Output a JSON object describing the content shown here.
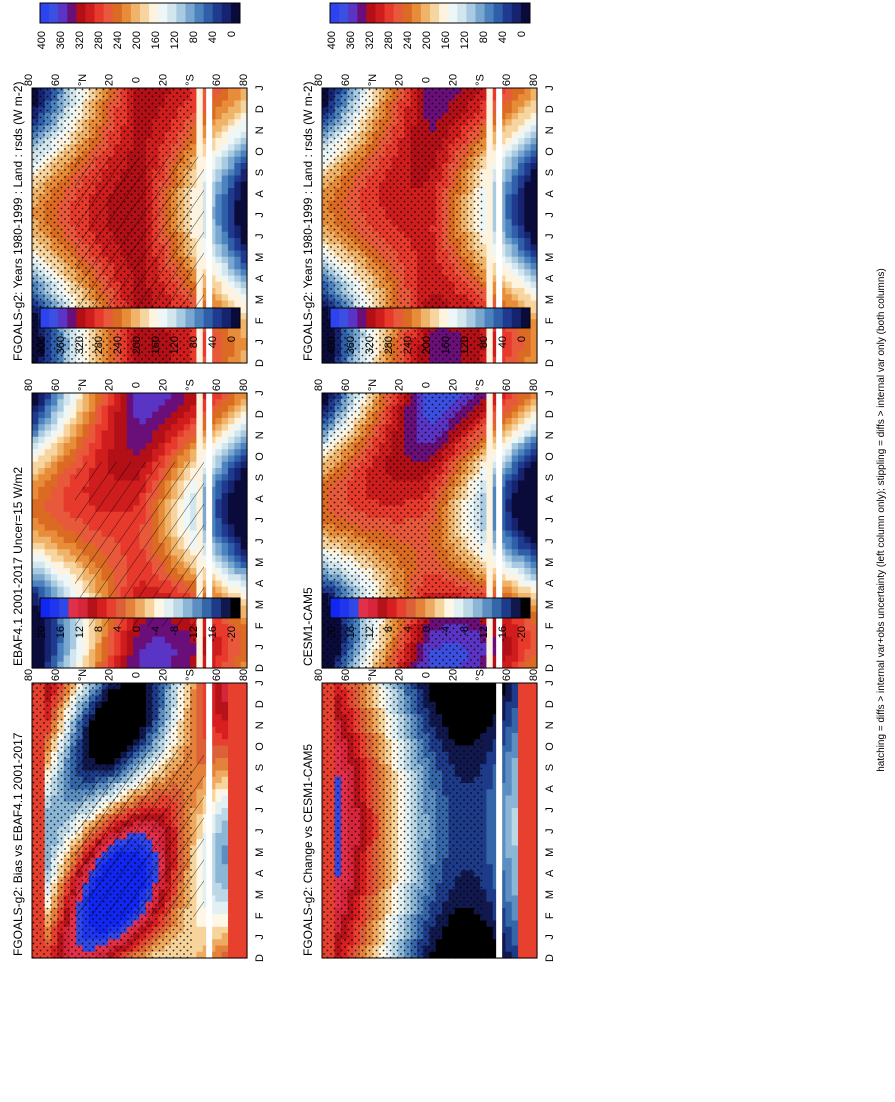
{
  "footer": {
    "text": "hatching = diffs > internal var+obs uncertainty (left column only); stippling = diffs > internal var only (both columns)"
  },
  "months": [
    "D",
    "J",
    "F",
    "M",
    "A",
    "M",
    "J",
    "J",
    "A",
    "S",
    "O",
    "N",
    "D",
    "J"
  ],
  "lat_ticks": [
    "80",
    "60",
    "°N",
    "20",
    "0",
    "20",
    "°S",
    "60",
    "80"
  ],
  "palettes": {
    "absolute": [
      "#0b0b3b",
      "#16236e",
      "#1f3a8f",
      "#2e5fa8",
      "#4c82bd",
      "#7aa7cf",
      "#a9cbe1",
      "#d3e6ee",
      "#eef7f7",
      "#fdf3df",
      "#f7d5a0",
      "#efb46a",
      "#e78d3a",
      "#db6a22",
      "#e8593c",
      "#e73a2c",
      "#cf1d1d",
      "#b20f17",
      "#6a0f7a",
      "#5a34c4",
      "#3b4fe0",
      "#2d43f0"
    ],
    "difference": [
      "#000000",
      "#10184e",
      "#1d3b88",
      "#3566a8",
      "#5c8ec2",
      "#8cb6d6",
      "#bcd8e6",
      "#e2f0f4",
      "#fff7e6",
      "#f6d49c",
      "#efaa62",
      "#e4813a",
      "#dc6139",
      "#e7402f",
      "#d71f21",
      "#b5121a",
      "#d7263c",
      "#e3304a",
      "#3048e6",
      "#1f35ee",
      "#1226f2"
    ]
  },
  "panels": [
    {
      "id": "r1c1",
      "title": "FGOALS-g2: Years 1980-1999 : Land : rsds (W m-2)",
      "colorbar_ticks": [
        "400",
        "360",
        "320",
        "280",
        "240",
        "200",
        "160",
        "120",
        "80",
        "40",
        "0"
      ],
      "palette": "absolute",
      "hatched": true,
      "stippled": true
    },
    {
      "id": "r1c2",
      "title": "FGOALS-g2: Years 1980-1999 : Land : rsds (W m-2)",
      "colorbar_ticks": [
        "400",
        "360",
        "320",
        "280",
        "240",
        "200",
        "160",
        "120",
        "80",
        "40",
        "0"
      ],
      "palette": "absolute",
      "hatched": false,
      "stippled": true
    },
    {
      "id": "r2c1",
      "title": "EBAF4.1 2001-2017 Uncer=15 W/m2",
      "colorbar_ticks": [
        "400",
        "360",
        "320",
        "280",
        "240",
        "200",
        "160",
        "120",
        "80",
        "40",
        "0"
      ],
      "palette": "absolute",
      "hatched": true,
      "stippled": false
    },
    {
      "id": "r2c2",
      "title": "CESM1-CAM5",
      "colorbar_ticks": [
        "400",
        "360",
        "320",
        "280",
        "240",
        "200",
        "160",
        "120",
        "80",
        "40",
        "0"
      ],
      "palette": "absolute",
      "hatched": false,
      "stippled": true
    },
    {
      "id": "r3c1",
      "title": "FGOALS-g2: Bias vs EBAF4.1 2001-2017",
      "colorbar_ticks": [
        "20",
        "16",
        "12",
        "8",
        "4",
        "0",
        "-4",
        "-8",
        "-12",
        "-16",
        "-20"
      ],
      "palette": "difference",
      "hatched": true,
      "stippled": true
    },
    {
      "id": "r3c2",
      "title": "FGOALS-g2: Change vs CESM1-CAM5",
      "colorbar_ticks": [
        "20",
        "16",
        "12",
        "8",
        "4",
        "0",
        "-4",
        "-8",
        "-12",
        "-16",
        "-20"
      ],
      "palette": "difference",
      "hatched": false,
      "stippled": true
    }
  ],
  "chart_data": [
    {
      "type": "heatmap",
      "panel": "r1c1",
      "title": "FGOALS-g2: Years 1980-1999 : Land : rsds (W m-2)",
      "x": "month (D,J,F,...,D,J)",
      "y": "latitude (80N to 80S)",
      "clim": [
        0,
        400
      ]
    },
    {
      "type": "heatmap",
      "panel": "r1c2",
      "title": "FGOALS-g2: Years 1980-1999 : Land : rsds (W m-2)",
      "x": "month (D,J,F,...,D,J)",
      "y": "latitude (80N to 80S)",
      "clim": [
        0,
        400
      ]
    },
    {
      "type": "heatmap",
      "panel": "r2c1",
      "title": "EBAF4.1 2001-2017 Uncer=15 W/m2",
      "x": "month (D,J,F,...,D,J)",
      "y": "latitude (80N to 80S)",
      "clim": [
        0,
        400
      ]
    },
    {
      "type": "heatmap",
      "panel": "r2c2",
      "title": "CESM1-CAM5",
      "x": "month (D,J,F,...,D,J)",
      "y": "latitude (80N to 80S)",
      "clim": [
        0,
        400
      ]
    },
    {
      "type": "heatmap",
      "panel": "r3c1",
      "title": "FGOALS-g2: Bias vs EBAF4.1 2001-2017",
      "x": "month (D,J,F,...,D,J)",
      "y": "latitude (80N to 80S)",
      "clim": [
        -20,
        20
      ]
    },
    {
      "type": "heatmap",
      "panel": "r3c2",
      "title": "FGOALS-g2: Change vs CESM1-CAM5",
      "x": "month (D,J,F,...,D,J)",
      "y": "latitude (80N to 80S)",
      "clim": [
        -20,
        20
      ]
    }
  ]
}
